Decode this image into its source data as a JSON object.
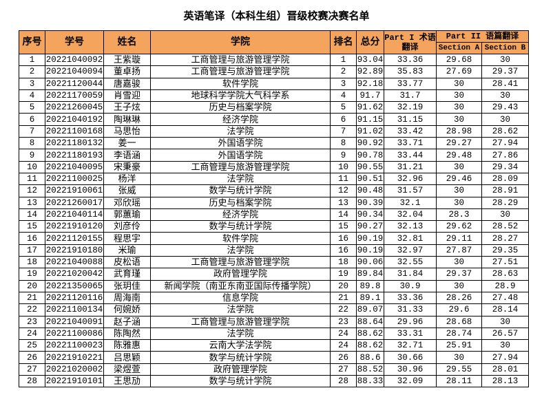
{
  "title": "英语笔译（本科生组）晋级校赛决赛名单",
  "table": {
    "headers": [
      "序号",
      "学号",
      "姓名",
      "学院",
      "排名",
      "总分",
      "Part I 术语翻译",
      "Part II 语篇翻译",
      "Section A",
      "Section B"
    ],
    "rows": [
      [
        "1",
        "20221040092",
        "王紫璇",
        "工商管理与旅游管理学院",
        "1",
        "93.04",
        "33.36",
        "29.68",
        "30"
      ],
      [
        "2",
        "20221040094",
        "董卓扬",
        "工商管理与旅游管理学院",
        "2",
        "92.89",
        "35.83",
        "27.69",
        "29.37"
      ],
      [
        "3",
        "20221120044",
        "唐嘉骏",
        "软件学院",
        "3",
        "92.18",
        "33.77",
        "30",
        "28.41"
      ],
      [
        "4",
        "20221170059",
        "肖雪迎",
        "地球科学学院大气科学系",
        "4",
        "91.7",
        "31.7",
        "30",
        "30"
      ],
      [
        "5",
        "20221260045",
        "王子炫",
        "历史与档案学院",
        "5",
        "91.62",
        "32.19",
        "30",
        "29.43"
      ],
      [
        "6",
        "20221040192",
        "陶琳琳",
        "经济学院",
        "6",
        "91.15",
        "31.15",
        "30",
        "30"
      ],
      [
        "7",
        "20221100168",
        "马思怡",
        "法学院",
        "7",
        "91.02",
        "33.42",
        "28.98",
        "28.62"
      ],
      [
        "8",
        "20221180132",
        "姜一",
        "外国语学院",
        "8",
        "90.92",
        "33.71",
        "29.27",
        "27.94"
      ],
      [
        "9",
        "20221180193",
        "李语涵",
        "外国语学院",
        "9",
        "90.78",
        "33.44",
        "29.48",
        "27.86"
      ],
      [
        "10",
        "20221040095",
        "宋秉豪",
        "工商管理与旅游管理学院",
        "10",
        "90.55",
        "31.21",
        "30",
        "29.34"
      ],
      [
        "11",
        "20221100025",
        "杨洋",
        "法学院",
        "11",
        "90.51",
        "32.96",
        "29.46",
        "28.09"
      ],
      [
        "12",
        "20221910061",
        "张威",
        "数学与统计学院",
        "12",
        "90.48",
        "31.57",
        "30",
        "28.91"
      ],
      [
        "13",
        "20221260017",
        "邓欣瑶",
        "历史与档案学院",
        "13",
        "90.39",
        "32.1",
        "30",
        "28.29"
      ],
      [
        "14",
        "20221040114",
        "郭蕙瑜",
        "经济学院",
        "14",
        "90.34",
        "32.04",
        "28.3",
        "30"
      ],
      [
        "15",
        "20221910120",
        "刘彦伶",
        "数学与统计学院",
        "15",
        "90.27",
        "32.13",
        "29.62",
        "28.52"
      ],
      [
        "16",
        "20221120155",
        "程思宇",
        "软件学院",
        "16",
        "90.19",
        "32.81",
        "29.11",
        "28.27"
      ],
      [
        "17",
        "20221910180",
        "米瑜",
        "法学院",
        "16",
        "90.19",
        "32.97",
        "27.87",
        "29.35"
      ],
      [
        "18",
        "20221040088",
        "皮松语",
        "工商管理与旅游管理学院",
        "18",
        "90.06",
        "32.55",
        "30",
        "27.51"
      ],
      [
        "19",
        "20221020042",
        "武育瑾",
        "政府管理学院",
        "19",
        "89.84",
        "31.84",
        "29.37",
        "28.63"
      ],
      [
        "20",
        "20221350065",
        "张玥佳",
        "新闻学院（南亚东南亚国际传播学院）",
        "20",
        "89.8",
        "30.9",
        "30",
        "28.9"
      ],
      [
        "21",
        "20221120116",
        "周海南",
        "信息学院",
        "21",
        "89.1",
        "33.36",
        "28.26",
        "27.48"
      ],
      [
        "22",
        "20221100134",
        "何婉娇",
        "法学院",
        "22",
        "89.07",
        "31.33",
        "29.6",
        "28.14"
      ],
      [
        "23",
        "20221040091",
        "赵子涵",
        "工商管理与旅游管理学院",
        "23",
        "88.64",
        "29.96",
        "28.68",
        "30"
      ],
      [
        "24",
        "20221100086",
        "陈陶然",
        "法学院",
        "24",
        "88.62",
        "33.31",
        "28.74",
        "26.57"
      ],
      [
        "25",
        "20221100023",
        "陈雅惠",
        "云南大学法学院",
        "24",
        "88.62",
        "32.71",
        "25.91",
        "30"
      ],
      [
        "26",
        "20221910221",
        "吕思颖",
        "数学与统计学院",
        "26",
        "88.6",
        "30.66",
        "30",
        "27.94"
      ],
      [
        "27",
        "20221020002",
        "梁煜萱",
        "政府管理学院",
        "27",
        "88.52",
        "30.96",
        "29.55",
        "28.01"
      ],
      [
        "28",
        "20221910101",
        "王思劢",
        "数学与统计学院",
        "28",
        "88.33",
        "32.09",
        "28.11",
        "28.13"
      ]
    ]
  }
}
